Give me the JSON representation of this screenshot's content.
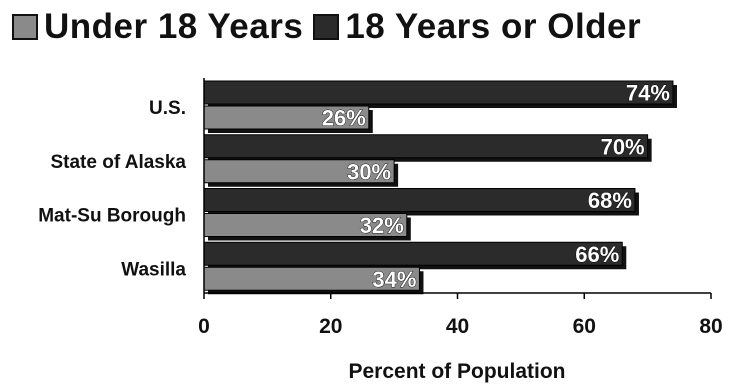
{
  "chart_data": {
    "type": "bar",
    "orientation": "horizontal",
    "categories": [
      "U.S.",
      "State of Alaska",
      "Mat-Su Borough",
      "Wasilla"
    ],
    "series": [
      {
        "name": "Under 18 Years",
        "values": [
          26,
          30,
          32,
          34
        ],
        "labels": [
          "26%",
          "30%",
          "32%",
          "34%"
        ],
        "color": "#8a8a8a"
      },
      {
        "name": "18 Years or Older",
        "values": [
          74,
          70,
          68,
          66
        ],
        "labels": [
          "74%",
          "70%",
          "68%",
          "66%"
        ],
        "color": "#2b2b2b"
      }
    ],
    "xlabel": "Percent of Population",
    "xlim": [
      0,
      80
    ],
    "xticks": [
      0,
      20,
      40,
      60,
      80
    ],
    "xtick_labels": [
      "0",
      "20",
      "40",
      "60",
      "80"
    ],
    "grid": false,
    "legend_position": "top"
  }
}
